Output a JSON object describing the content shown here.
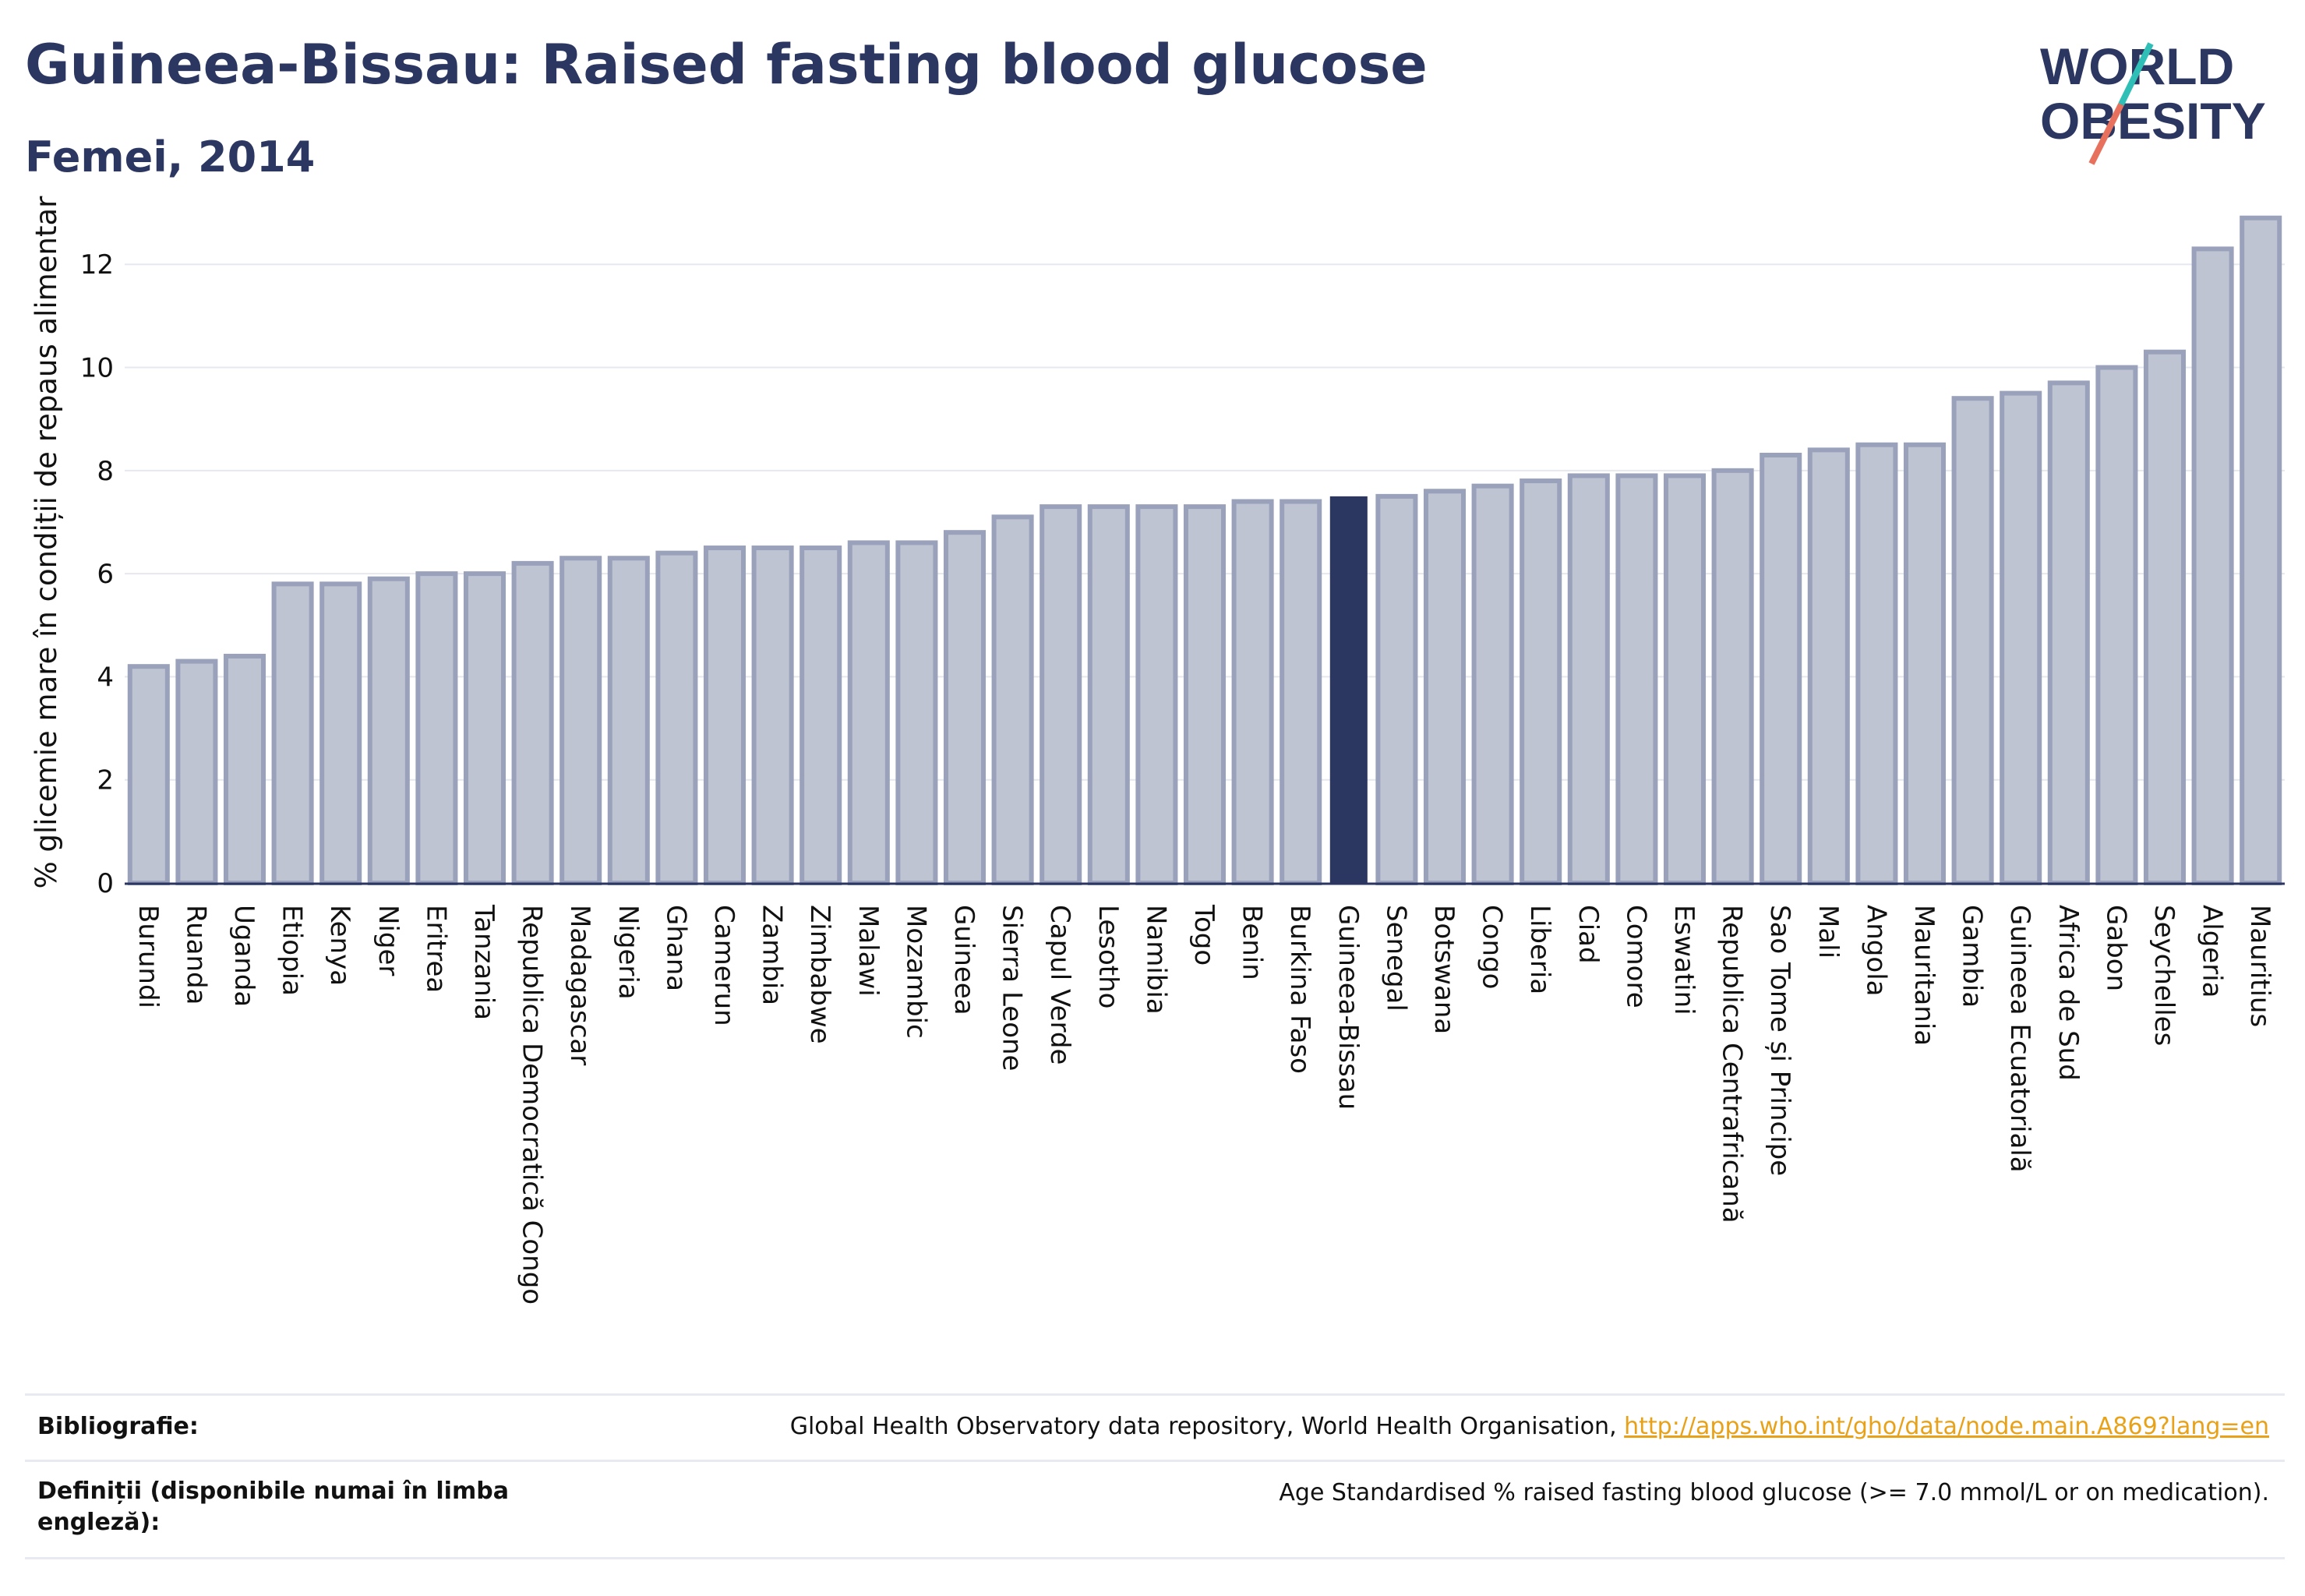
{
  "title": "Guineea-Bissau: Raised fasting blood glucose",
  "subtitle": "Femei, 2014",
  "logo": {
    "line1": "WORLD",
    "line2": "OBESITY"
  },
  "colors": {
    "bar": "#bfc4d3",
    "bar_border": "#9aa1ba",
    "highlight": "#2b3661",
    "text": "#2b3661"
  },
  "chart_data": {
    "type": "bar",
    "ylabel": "% glicemie mare în condiții de repaus alimentar",
    "ylim": [
      0,
      13.5
    ],
    "yticks": [
      0,
      2,
      4,
      6,
      8,
      10,
      12
    ],
    "grid": true,
    "highlight": "Guineea-Bissau",
    "categories": [
      "Burundi",
      "Ruanda",
      "Uganda",
      "Etiopia",
      "Kenya",
      "Niger",
      "Eritrea",
      "Tanzania",
      "Republica Democratică Congo",
      "Madagascar",
      "Nigeria",
      "Ghana",
      "Camerun",
      "Zambia",
      "Zimbabwe",
      "Malawi",
      "Mozambic",
      "Guineea",
      "Sierra Leone",
      "Capul Verde",
      "Lesotho",
      "Namibia",
      "Togo",
      "Benin",
      "Burkina Faso",
      "Guineea-Bissau",
      "Senegal",
      "Botswana",
      "Congo",
      "Liberia",
      "Ciad",
      "Comore",
      "Eswatini",
      "Republica Centrafricană",
      "Sao Tome și Principe",
      "Mali",
      "Angola",
      "Mauritania",
      "Gambia",
      "Guineea Ecuatorială",
      "Africa de Sud",
      "Gabon",
      "Seychelles",
      "Algeria",
      "Mauritius"
    ],
    "values": [
      4.2,
      4.3,
      4.4,
      5.8,
      5.8,
      5.9,
      6.0,
      6.0,
      6.2,
      6.3,
      6.3,
      6.4,
      6.5,
      6.5,
      6.5,
      6.6,
      6.6,
      6.8,
      7.1,
      7.3,
      7.3,
      7.3,
      7.3,
      7.4,
      7.4,
      7.5,
      7.5,
      7.6,
      7.7,
      7.8,
      7.9,
      7.9,
      7.9,
      8.0,
      8.3,
      8.4,
      8.5,
      8.5,
      9.4,
      9.5,
      9.7,
      10.0,
      10.3,
      12.3,
      12.9
    ]
  },
  "footer": {
    "bibliography_label": "Bibliografie:",
    "bibliography_text": "Global Health Observatory data repository, World Health Organisation, ",
    "bibliography_link": "http://apps.who.int/gho/data/node.main.A869?lang=en",
    "definitions_label": "Definiții (disponibile numai în limba engleză):",
    "definitions_text": "Age Standardised % raised fasting blood glucose (>= 7.0 mmol/L or on medication)."
  }
}
